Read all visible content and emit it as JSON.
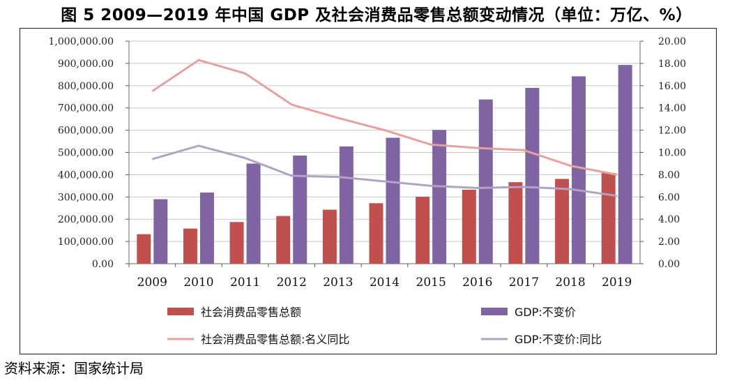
{
  "title": "图 5   2009—2019 年中国 GDP 及社会消费品零售总额变动情况（单位：万亿、%）",
  "source": "资料来源：国家统计局",
  "chart_data": {
    "type": "bar",
    "categories": [
      "2009",
      "2010",
      "2011",
      "2012",
      "2013",
      "2014",
      "2015",
      "2016",
      "2017",
      "2018",
      "2019"
    ],
    "series": [
      {
        "name": "社会消费品零售总额",
        "kind": "bar",
        "axis": "left",
        "color": "#c0504d",
        "values": [
          132678,
          158008,
          187206,
          214433,
          242843,
          271896,
          300931,
          332316,
          366262,
          380987,
          408017
        ]
      },
      {
        "name": "GDP:不变价",
        "kind": "bar",
        "axis": "left",
        "color": "#8064a2",
        "values": [
          290000,
          320000,
          450000,
          486000,
          527000,
          566000,
          601000,
          738000,
          790000,
          842000,
          893000
        ]
      },
      {
        "name": "社会消费品零售总额:名义同比",
        "kind": "line",
        "axis": "right",
        "color": "#e6a19f",
        "values": [
          15.5,
          18.3,
          17.1,
          14.3,
          13.1,
          12.0,
          10.7,
          10.4,
          10.2,
          8.8,
          8.0
        ]
      },
      {
        "name": "GDP:不变价:同比",
        "kind": "line",
        "axis": "right",
        "color": "#b3a2c7",
        "values": [
          9.4,
          10.6,
          9.5,
          7.9,
          7.8,
          7.4,
          7.0,
          6.8,
          6.9,
          6.7,
          6.1
        ]
      }
    ],
    "ylim_left": [
      0,
      1000000
    ],
    "ylim_right": [
      0,
      20
    ],
    "yticks_left": [
      "0.00",
      "100,000.00",
      "200,000.00",
      "300,000.00",
      "400,000.00",
      "500,000.00",
      "600,000.00",
      "700,000.00",
      "800,000.00",
      "900,000.00",
      "1,000,000.00"
    ],
    "yticks_right": [
      "0.00",
      "2.00",
      "4.00",
      "6.00",
      "8.00",
      "10.00",
      "12.00",
      "14.00",
      "16.00",
      "18.00",
      "20.00"
    ],
    "grid": true,
    "legend_position": "bottom"
  }
}
